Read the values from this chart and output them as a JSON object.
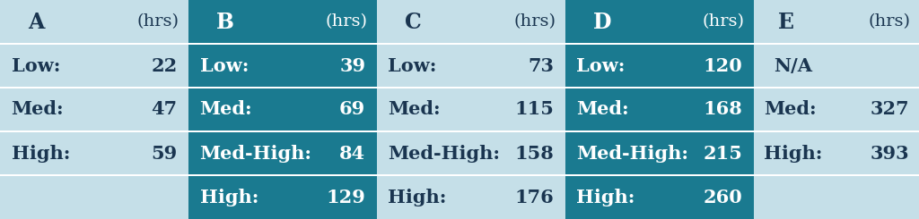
{
  "fig_width": 10.24,
  "fig_height": 2.45,
  "bg_color": "#b8d8e4",
  "dark_teal": "#1a7a90",
  "light_bg": "#c5dfe8",
  "col_boundaries": [
    0.0,
    0.205,
    0.41,
    0.615,
    0.82,
    1.0
  ],
  "col_shaded": [
    false,
    true,
    false,
    true,
    false
  ],
  "col_headers": [
    "A",
    "B",
    "C",
    "D",
    "E"
  ],
  "n_data_rows": 4,
  "header_font_size": 17,
  "cell_font_size": 15,
  "col_data": [
    [
      [
        "Low:",
        "22"
      ],
      [
        "Med:",
        "47"
      ],
      [
        "High:",
        "59"
      ],
      [
        null,
        null
      ]
    ],
    [
      [
        "Low:",
        "39"
      ],
      [
        "Med:",
        "69"
      ],
      [
        "Med-High:",
        "84"
      ],
      [
        "High:",
        "129"
      ]
    ],
    [
      [
        "Low:",
        "73"
      ],
      [
        "Med:",
        "115"
      ],
      [
        "Med-High:",
        "158"
      ],
      [
        "High:",
        "176"
      ]
    ],
    [
      [
        "Low:",
        "120"
      ],
      [
        "Med:",
        "168"
      ],
      [
        "Med-High:",
        "215"
      ],
      [
        "High:",
        "260"
      ]
    ],
    [
      [
        "N/A",
        null
      ],
      [
        "Med:",
        "327"
      ],
      [
        "High:",
        "393"
      ],
      [
        null,
        null
      ]
    ]
  ],
  "light_text": "#1a3550",
  "dark_text": "#ffffff",
  "white_line": "#ffffff"
}
